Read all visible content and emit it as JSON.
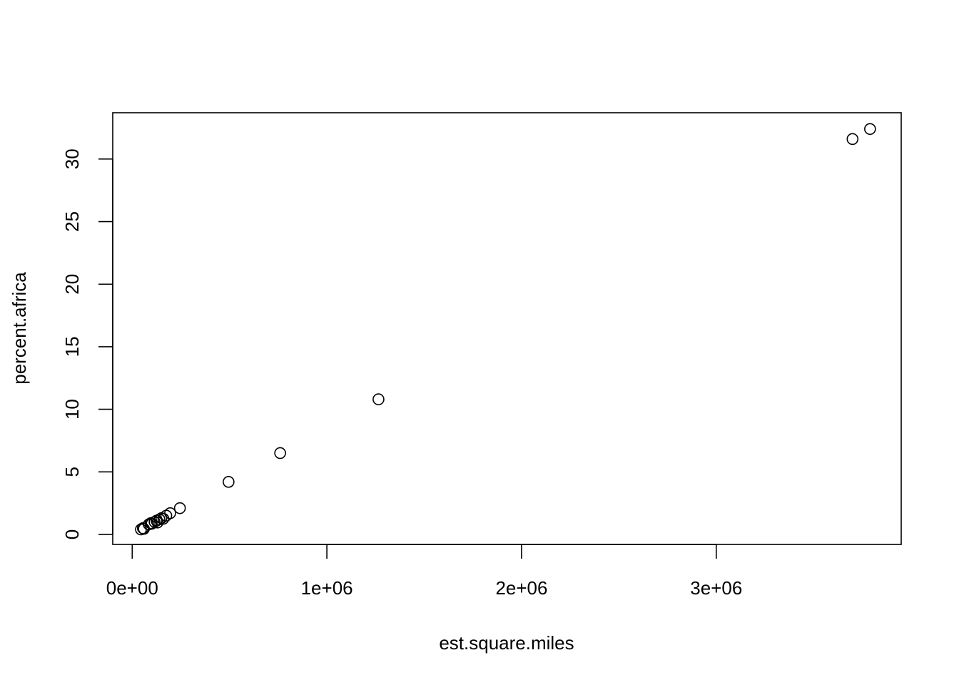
{
  "chart_data": {
    "type": "scatter",
    "title": "",
    "xlabel": "est.square.miles",
    "ylabel": "percent.africa",
    "xlim": [
      -100000,
      3950000
    ],
    "ylim": [
      -0.8,
      33.7
    ],
    "x_ticks": [
      0,
      1000000,
      2000000,
      3000000
    ],
    "x_tick_labels": [
      "0e+00",
      "1e+06",
      "2e+06",
      "3e+06"
    ],
    "y_ticks": [
      0,
      5,
      10,
      15,
      20,
      25,
      30
    ],
    "y_tick_labels": [
      "0",
      "5",
      "10",
      "15",
      "20",
      "25",
      "30"
    ],
    "grid": false,
    "legend": "none",
    "series": [
      {
        "x": [
          45000,
          55000,
          60000,
          85000,
          95000,
          100000,
          115000,
          125000,
          130000,
          140000,
          150000,
          160000,
          175000,
          195000,
          245000,
          495000,
          760000,
          1265000,
          3700000,
          3790000
        ],
        "y": [
          0.4,
          0.5,
          0.45,
          0.8,
          0.9,
          0.85,
          1.0,
          1.1,
          0.95,
          1.2,
          1.3,
          1.25,
          1.5,
          1.7,
          2.1,
          4.2,
          6.5,
          10.8,
          31.6,
          32.4
        ]
      }
    ]
  }
}
